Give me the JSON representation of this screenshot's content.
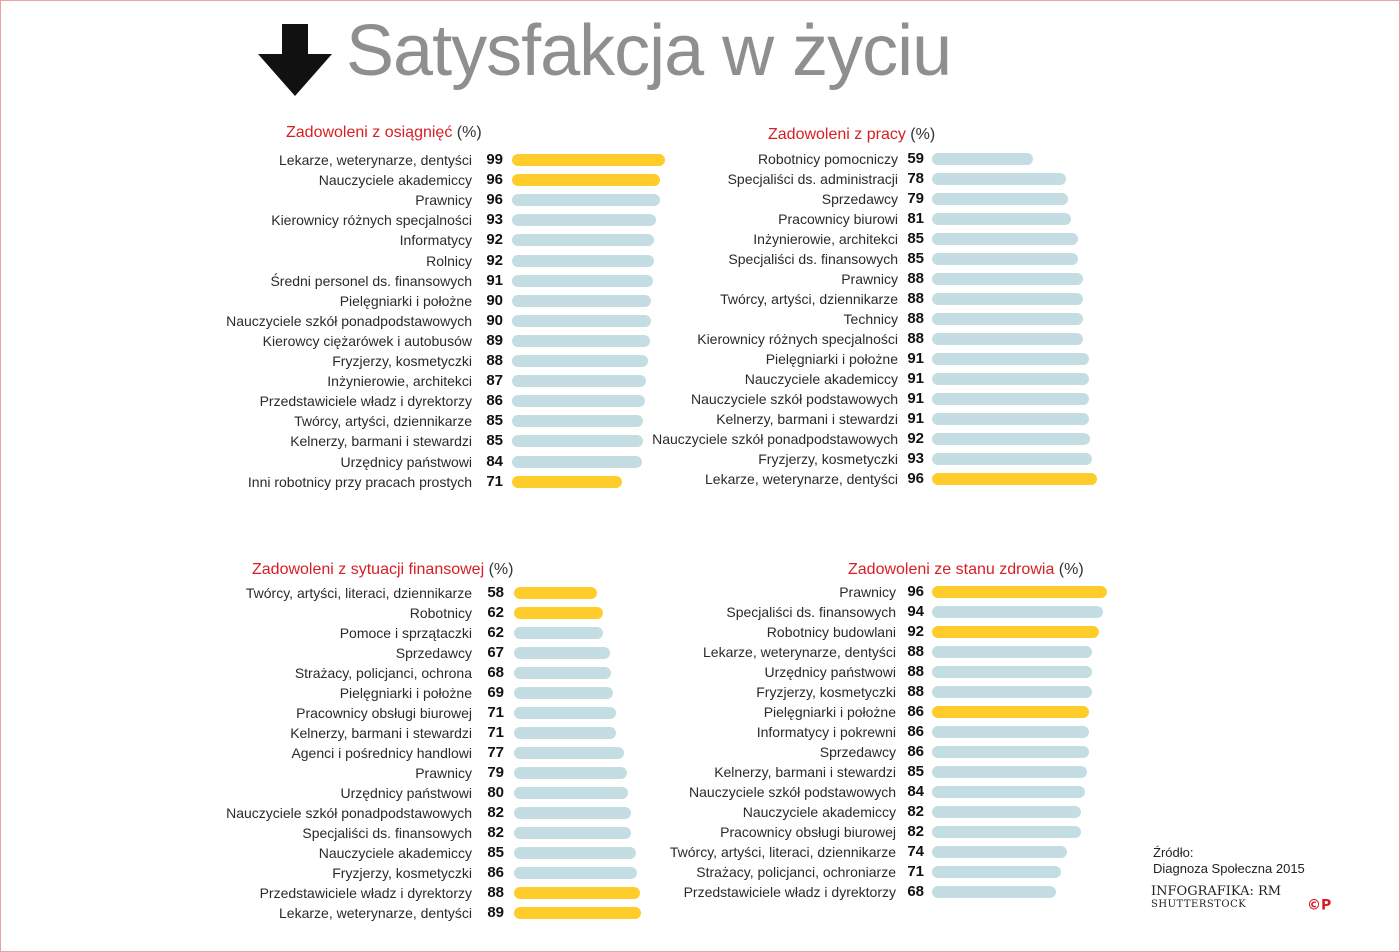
{
  "title": "Satysfakcja w życiu",
  "source_label": "Źródło:",
  "source_text": "Diagnoza Społeczna 2015",
  "credit_line1": "INFOGRAFIKA: RM",
  "credit_line2": "SHUTTERSTOCK",
  "logo_text": "©P",
  "colors": {
    "title_gray": "#8f8f8f",
    "panel_title_red": "#d81e24",
    "bar_default": "#c3dde2",
    "bar_highlight": "#ffcd2b",
    "logo_red": "#d81e24"
  },
  "icons": {
    "title_icon": "down-arrow-icon"
  },
  "chart_data": [
    {
      "type": "bar",
      "orientation": "horizontal",
      "title": "Zadowoleni z osiągnięć",
      "unit": "(%)",
      "categories": [
        "Lekarze, weterynarze, dentyści",
        "Nauczyciele akademiccy",
        "Prawnicy",
        "Kierownicy różnych specjalności",
        "Informatycy",
        "Rolnicy",
        "Średni personel ds. finansowych",
        "Pielęgniarki i położne",
        "Nauczyciele szkół ponadpodstawowych",
        "Kierowcy ciężarówek i autobusów",
        "Fryzjerzy, kosmetyczki",
        "Inżynierowie, architekci",
        "Przedstawiciele władz i dyrektorzy",
        "Twórcy, artyści, dziennikarze",
        "Kelnerzy, barmani i stewardzi",
        "Urzędnicy państwowi",
        "Inni robotnicy przy pracach prostych"
      ],
      "values": [
        99,
        96,
        96,
        93,
        92,
        92,
        91,
        90,
        90,
        89,
        88,
        87,
        86,
        85,
        85,
        84,
        71
      ],
      "highlighted": [
        0,
        1,
        16
      ]
    },
    {
      "type": "bar",
      "orientation": "horizontal",
      "title": "Zadowoleni z pracy",
      "unit": "(%)",
      "categories": [
        "Robotnicy pomocniczy",
        "Specjaliści ds. administracji",
        "Sprzedawcy",
        "Pracownicy biurowi",
        "Inżynierowie, architekci",
        "Specjaliści ds. finansowych",
        "Prawnicy",
        "Twórcy, artyści, dziennikarze",
        "Technicy",
        "Kierownicy różnych specjalności",
        "Pielęgniarki i położne",
        "Nauczyciele akademiccy",
        "Nauczyciele szkół podstawowych",
        "Kelnerzy, barmani i stewardzi",
        "Nauczyciele szkół ponadpodstawowych",
        "Fryzjerzy, kosmetyczki",
        "Lekarze, weterynarze, dentyści"
      ],
      "values": [
        59,
        78,
        79,
        81,
        85,
        85,
        88,
        88,
        88,
        88,
        91,
        91,
        91,
        91,
        92,
        93,
        96
      ],
      "highlighted": [
        16
      ]
    },
    {
      "type": "bar",
      "orientation": "horizontal",
      "title": "Zadowoleni z sytuacji finansowej",
      "unit": "(%)",
      "categories": [
        "Twórcy, artyści, literaci, dziennikarze",
        "Robotnicy",
        "Pomoce i sprzątaczki",
        "Sprzedawcy",
        "Strażacy, policjanci, ochrona",
        "Pielęgniarki i położne",
        "Pracownicy obsługi biurowej",
        "Kelnerzy, barmani i stewardzi",
        "Agenci i pośrednicy handlowi",
        "Prawnicy",
        "Urzędnicy państwowi",
        "Nauczyciele szkół ponadpodstawowych",
        "Specjaliści ds. finansowych",
        "Nauczyciele akademiccy",
        "Fryzjerzy, kosmetyczki",
        "Przedstawiciele władz i dyrektorzy",
        "Lekarze, weterynarze, dentyści"
      ],
      "values": [
        58,
        62,
        62,
        67,
        68,
        69,
        71,
        71,
        77,
        79,
        80,
        82,
        82,
        85,
        86,
        88,
        89
      ],
      "highlighted": [
        0,
        1,
        15,
        16
      ]
    },
    {
      "type": "bar",
      "orientation": "horizontal",
      "title": "Zadowoleni ze stanu zdrowia",
      "unit": "(%)",
      "categories": [
        "Prawnicy",
        "Specjaliści ds. finansowych",
        "Robotnicy budowlani",
        "Lekarze, weterynarze, dentyści",
        "Urzędnicy państwowi",
        "Fryzjerzy, kosmetyczki",
        "Pielęgniarki i położne",
        "Informatycy i pokrewni",
        "Sprzedawcy",
        "Kelnerzy, barmani i stewardzi",
        "Nauczyciele szkół podstawowych",
        "Nauczyciele akademiccy",
        "Pracownicy obsługi biurowej",
        "Twórcy, artyści, literaci, dziennikarze",
        "Strażacy, policjanci, ochroniarze",
        "Przedstawiciele władz i dyrektorzy"
      ],
      "values": [
        96,
        94,
        92,
        88,
        88,
        88,
        86,
        86,
        86,
        85,
        84,
        82,
        82,
        74,
        71,
        68
      ],
      "highlighted": [
        0,
        2,
        6
      ]
    }
  ]
}
